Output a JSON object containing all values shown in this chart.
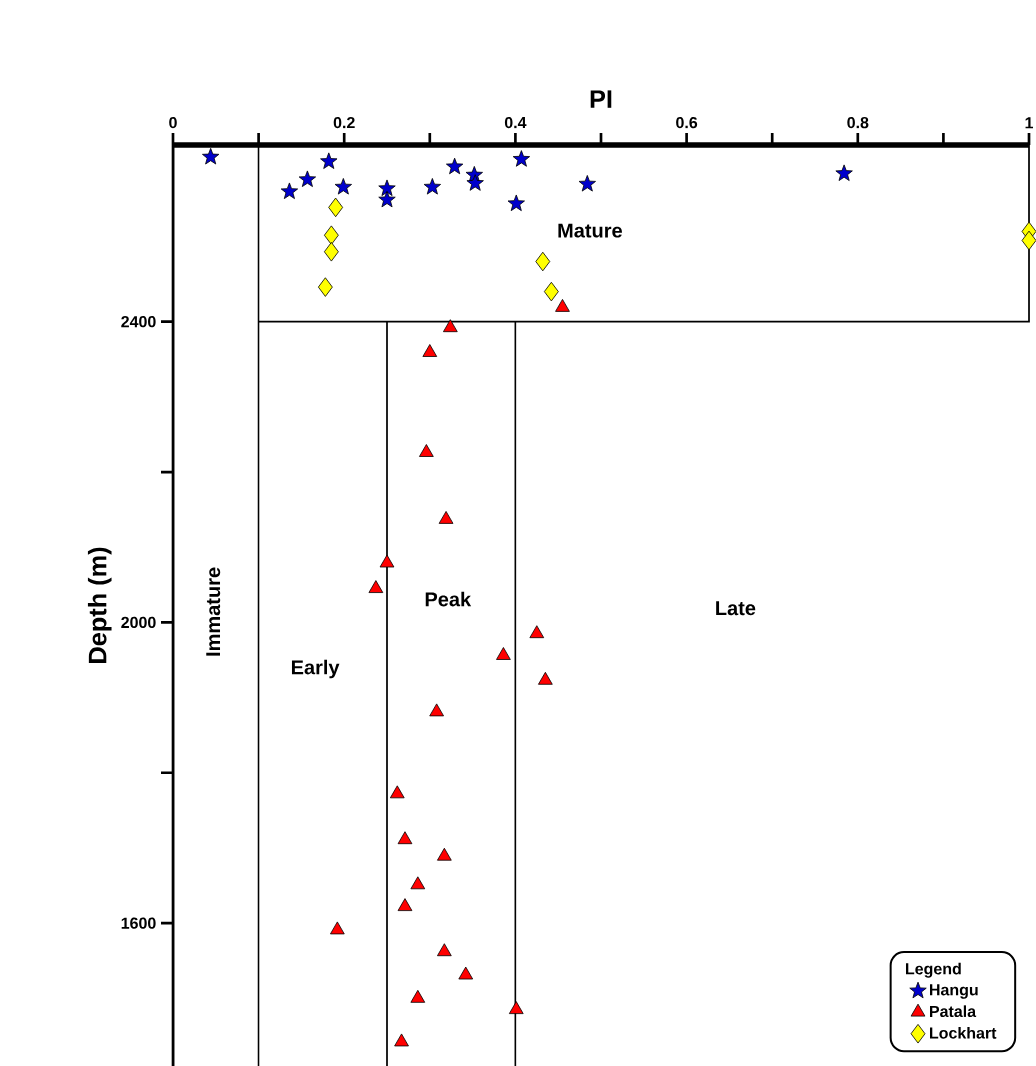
{
  "chart_data": {
    "type": "scatter",
    "xlabel": "PI",
    "ylabel": "Depth (m)",
    "legend_title": "Legend",
    "legend": "bottom right",
    "grid": false,
    "xlim": [
      0,
      1
    ],
    "xticks": [
      0,
      {
        "value": 0.1,
        "label": null
      },
      0.2,
      {
        "value": 0.3,
        "label": null
      },
      0.4,
      {
        "value": 0.5,
        "label": null
      },
      0.6,
      {
        "value": 0.7,
        "label": null
      },
      0.8,
      {
        "value": 0.9,
        "label": null
      },
      1
    ],
    "ylim": [
      1410,
      2635
    ],
    "yticks": [
      1600,
      {
        "value": 1800,
        "label": null
      },
      2000,
      {
        "value": 2200,
        "label": null
      },
      2400
    ],
    "series": [
      {
        "name": "Hangu",
        "color": "#0000cc",
        "marker": "star",
        "x": [
          0.044,
          0.136,
          0.157,
          0.182,
          0.199,
          0.25,
          0.25,
          0.303,
          0.329,
          0.352,
          0.353,
          0.407,
          0.401,
          0.484,
          0.784
        ],
        "values": [
          2619,
          2573,
          2589,
          2613,
          2579,
          2577,
          2562,
          2579,
          2606,
          2595,
          2584,
          2616,
          2557,
          2583,
          2597
        ]
      },
      {
        "name": "Patala",
        "color": "#ff0000",
        "marker": "triangle",
        "x": [
          0.455,
          0.324,
          0.3,
          0.296,
          0.319,
          0.25,
          0.237,
          0.425,
          0.386,
          0.435,
          0.308,
          0.262,
          0.271,
          0.317,
          0.286,
          0.271,
          0.192,
          0.317,
          0.342,
          0.286,
          0.401,
          0.267
        ],
        "values": [
          2419,
          2392,
          2359,
          2226,
          2137,
          2079,
          2045,
          1985,
          1956,
          1923,
          1881,
          1772,
          1711,
          1689,
          1651,
          1622,
          1591,
          1562,
          1531,
          1500,
          1485,
          1442
        ]
      },
      {
        "name": "Lockhart",
        "color": "#ffff00",
        "marker": "diamond",
        "x": [
          0.19,
          0.185,
          0.185,
          0.178,
          0.432,
          0.442,
          1.0,
          1.0
        ],
        "values": [
          2552,
          2515,
          2493,
          2446,
          2480,
          2440,
          2520,
          2508
        ]
      }
    ],
    "ref_lines": [
      {
        "axis": "x",
        "value": 0.1
      },
      {
        "axis": "x",
        "value": 0.25
      },
      {
        "axis": "x",
        "value": 0.4
      },
      {
        "axis": "y",
        "value": 2400
      }
    ],
    "annotations": [
      "Immature",
      "Early",
      "Peak",
      "Late",
      "Mature"
    ]
  }
}
